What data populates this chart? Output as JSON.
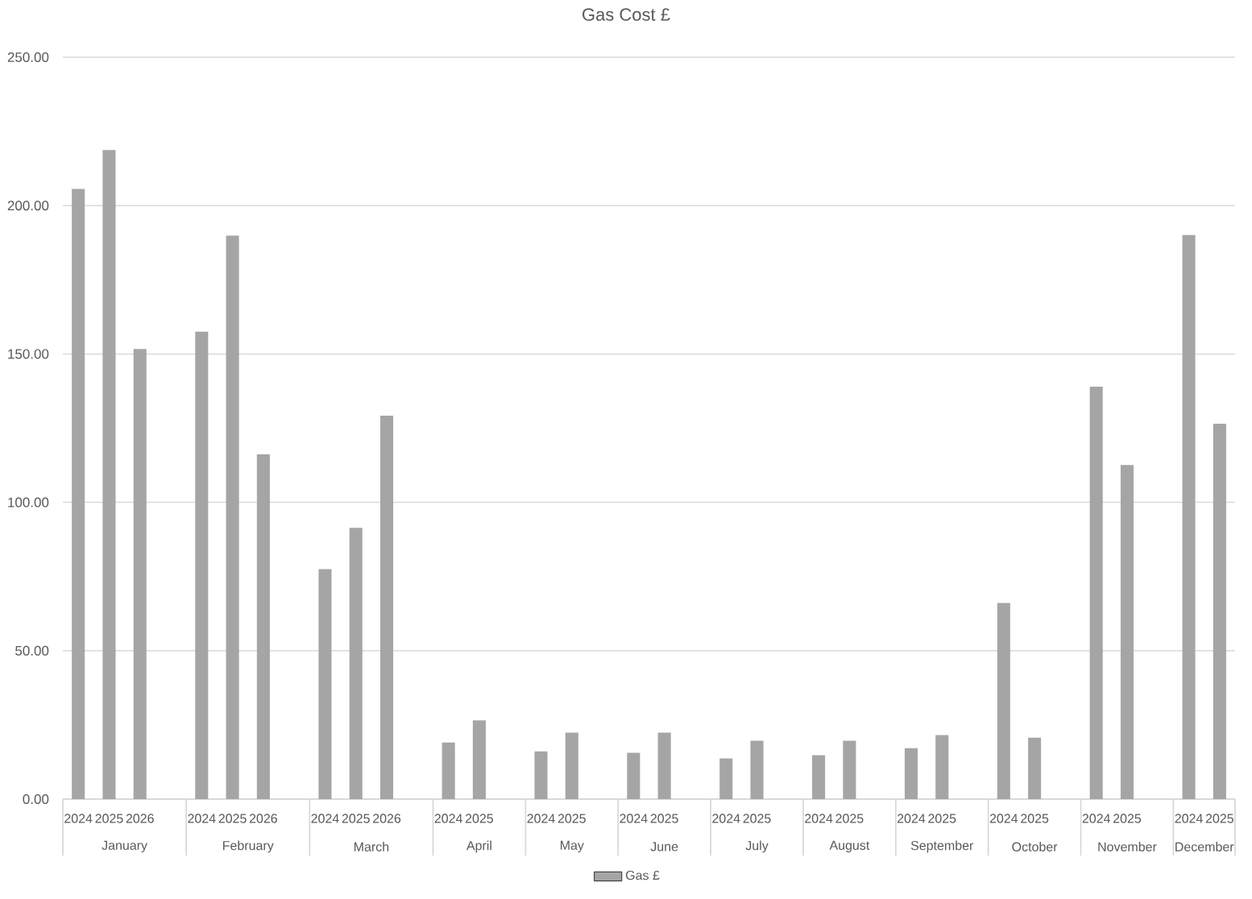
{
  "chart_data": {
    "type": "bar",
    "title": "Gas Cost £",
    "categories": [
      "2024",
      "2025",
      "2026",
      null,
      "2024",
      "2025",
      "2026",
      null,
      "2024",
      "2025",
      "2026",
      null,
      "2024",
      "2025",
      null,
      "2024",
      "2025",
      null,
      "2024",
      "2025",
      null,
      "2024",
      "2025",
      null,
      "2024",
      "2025",
      null,
      "2024",
      "2025",
      null,
      "2024",
      "2025",
      null,
      "2024",
      "2025",
      null,
      "2024",
      "2025"
    ],
    "series": [
      {
        "name": "Gas £",
        "color": "#a5a5a5",
        "values": [
          205.6,
          218.7,
          151.7,
          null,
          157.5,
          189.9,
          116.2,
          null,
          77.5,
          91.4,
          129.2,
          null,
          19.1,
          26.5,
          null,
          16.1,
          22.4,
          null,
          15.6,
          22.4,
          null,
          13.7,
          19.7,
          null,
          14.8,
          19.7,
          null,
          17.2,
          21.6,
          null,
          66.1,
          20.7,
          null,
          139.0,
          112.6,
          null,
          190.1,
          126.5
        ]
      }
    ],
    "annotations": [
      "January",
      "February",
      "March",
      "April",
      "May",
      "June",
      "July",
      "August",
      "September",
      "October",
      "November",
      "December"
    ],
    "ylim": [
      0,
      250
    ],
    "yticks": [
      {
        "value": 0,
        "label": "0.00"
      },
      {
        "value": 50,
        "label": "50.00"
      },
      {
        "value": 100,
        "label": "100.00"
      },
      {
        "value": 150,
        "label": "150.00"
      },
      {
        "value": 200,
        "label": "200.00"
      },
      {
        "value": 250,
        "label": "250.00"
      }
    ],
    "grid": "y",
    "legend": "bottom"
  }
}
